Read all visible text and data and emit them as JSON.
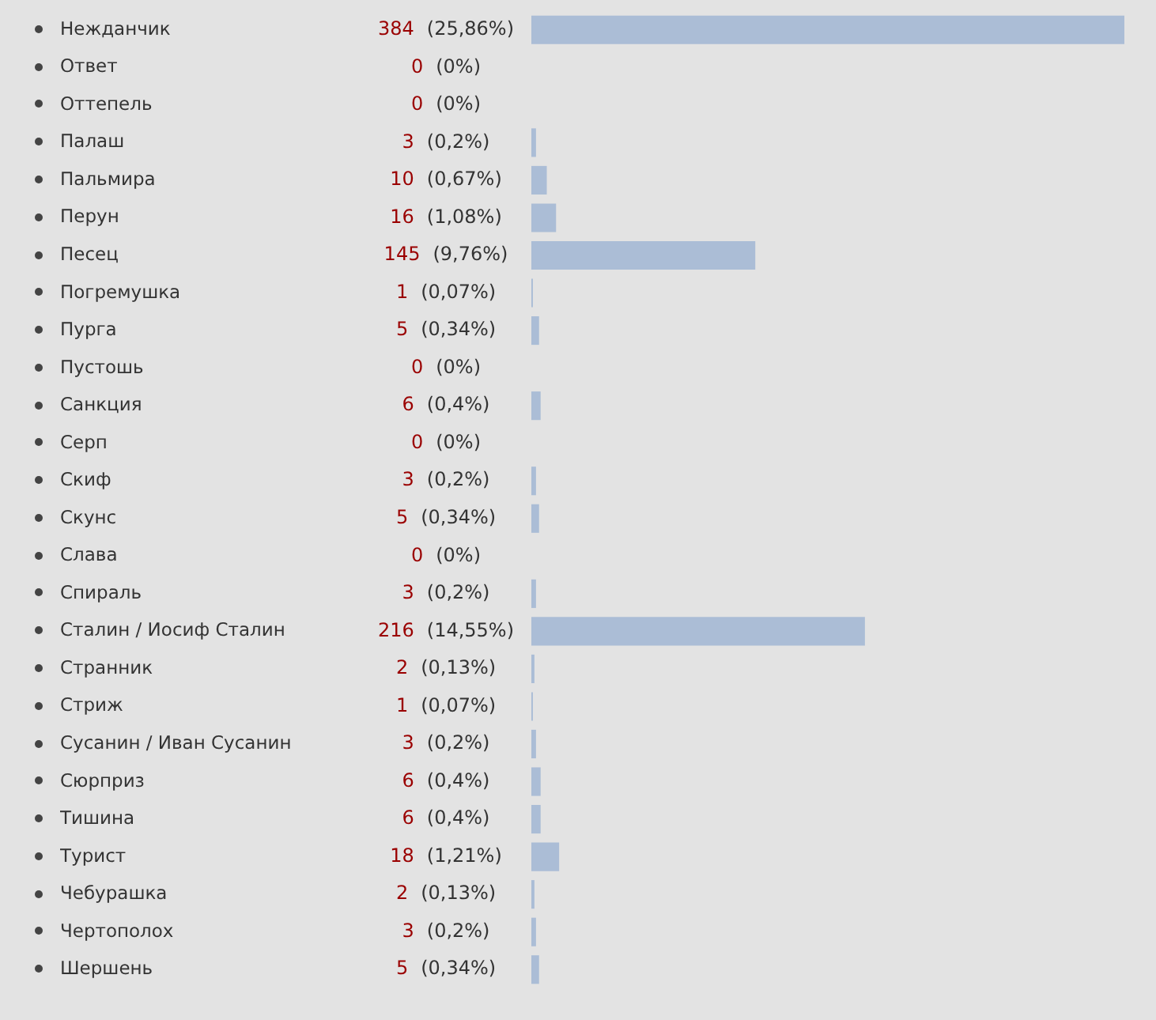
{
  "chart_data": {
    "type": "bar",
    "orientation": "horizontal",
    "color": "#abbdd6",
    "tick_labels": "y",
    "categories": [
      "Нежданчик",
      "Ответ",
      "Оттепель",
      "Палаш",
      "Пальмира",
      "Перун",
      "Песец",
      "Погремушка",
      "Пурга",
      "Пустошь",
      "Санкция",
      "Серп",
      "Скиф",
      "Скунс",
      "Слава",
      "Спираль",
      "Сталин / Иосиф Сталин",
      "Странник",
      "Стриж",
      "Сусанин / Иван Сусанин",
      "Сюрприз",
      "Тишина",
      "Турист",
      "Чебурашка",
      "Чертополох",
      "Шершень"
    ],
    "values": [
      384,
      0,
      0,
      3,
      10,
      16,
      145,
      1,
      5,
      0,
      6,
      0,
      3,
      5,
      0,
      3,
      216,
      2,
      1,
      3,
      6,
      6,
      18,
      2,
      3,
      5
    ],
    "value_labels": [
      "384 (25,86%)",
      "0 (0%)",
      "0 (0%)",
      "3 (0,2%)",
      "10 (0,67%)",
      "16 (1,08%)",
      "145 (9,76%)",
      "1 (0,07%)",
      "5 (0,34%)",
      "0 (0%)",
      "6 (0,4%)",
      "0 (0%)",
      "3 (0,2%)",
      "5 (0,34%)",
      "0 (0%)",
      "3 (0,2%)",
      "216 (14,55%)",
      "2 (0,13%)",
      "1 (0,07%)",
      "3 (0,2%)",
      "6 (0,4%)",
      "6 (0,4%)",
      "18 (1,21%)",
      "2 (0,13%)",
      "3 (0,2%)",
      "5 (0,34%)"
    ]
  }
}
